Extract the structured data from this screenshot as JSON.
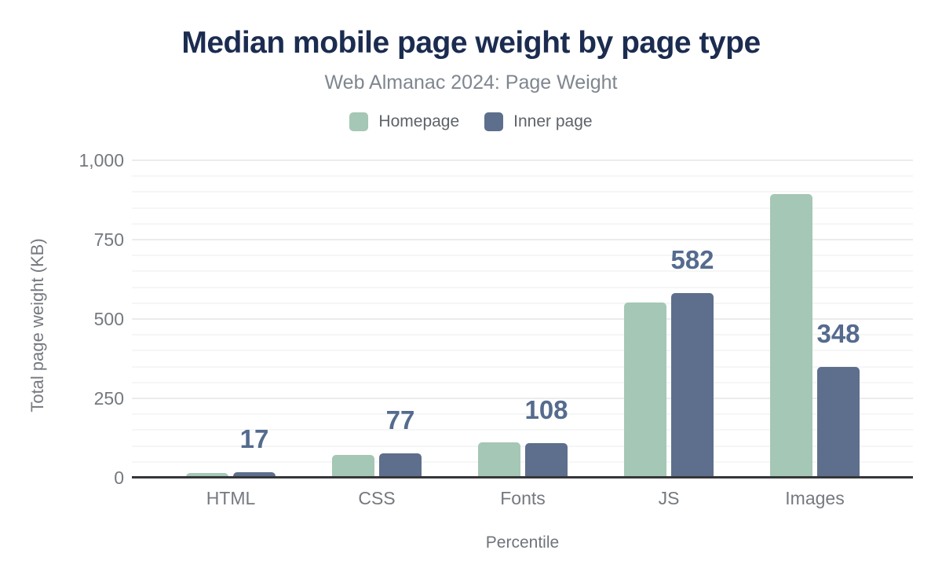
{
  "header": {
    "title": "Median mobile page weight by page type",
    "subtitle": "Web Almanac 2024: Page Weight"
  },
  "chart_data": {
    "type": "bar",
    "title": "Median mobile page weight by page type",
    "subtitle": "Web Almanac 2024: Page Weight",
    "categories": [
      "HTML",
      "CSS",
      "Fonts",
      "JS",
      "Images"
    ],
    "series": [
      {
        "name": "Homepage",
        "color": "#a5c7b5",
        "values": [
          16,
          71,
          111,
          552,
          894
        ]
      },
      {
        "name": "Inner page",
        "color": "#5d6f8c",
        "values": [
          17,
          77,
          108,
          582,
          348
        ],
        "labels": [
          "17",
          "77",
          "108",
          "582",
          "348"
        ]
      }
    ],
    "xlabel": "Percentile",
    "ylabel": "Total page weight (KB)",
    "ylim": [
      0,
      1000
    ],
    "yticks": [
      {
        "v": 0,
        "label": "0"
      },
      {
        "v": 250,
        "label": "250"
      },
      {
        "v": 500,
        "label": "500"
      },
      {
        "v": 750,
        "label": "750"
      },
      {
        "v": 1000,
        "label": "1,000"
      }
    ],
    "grid": {
      "minor_step": 50,
      "major_step": 250,
      "on": true
    },
    "legend_position": "top"
  },
  "colors": {
    "title": "#1b2c50",
    "subtitle": "#7f868e",
    "homepage_bar": "#a5c7b5",
    "inner_page_bar": "#5d6f8c",
    "value_label": "#556b8e",
    "axis_line": "#35363a",
    "grid_major": "#ececec",
    "grid_minor": "#f5f6f6",
    "tick_text": "#75797f"
  }
}
